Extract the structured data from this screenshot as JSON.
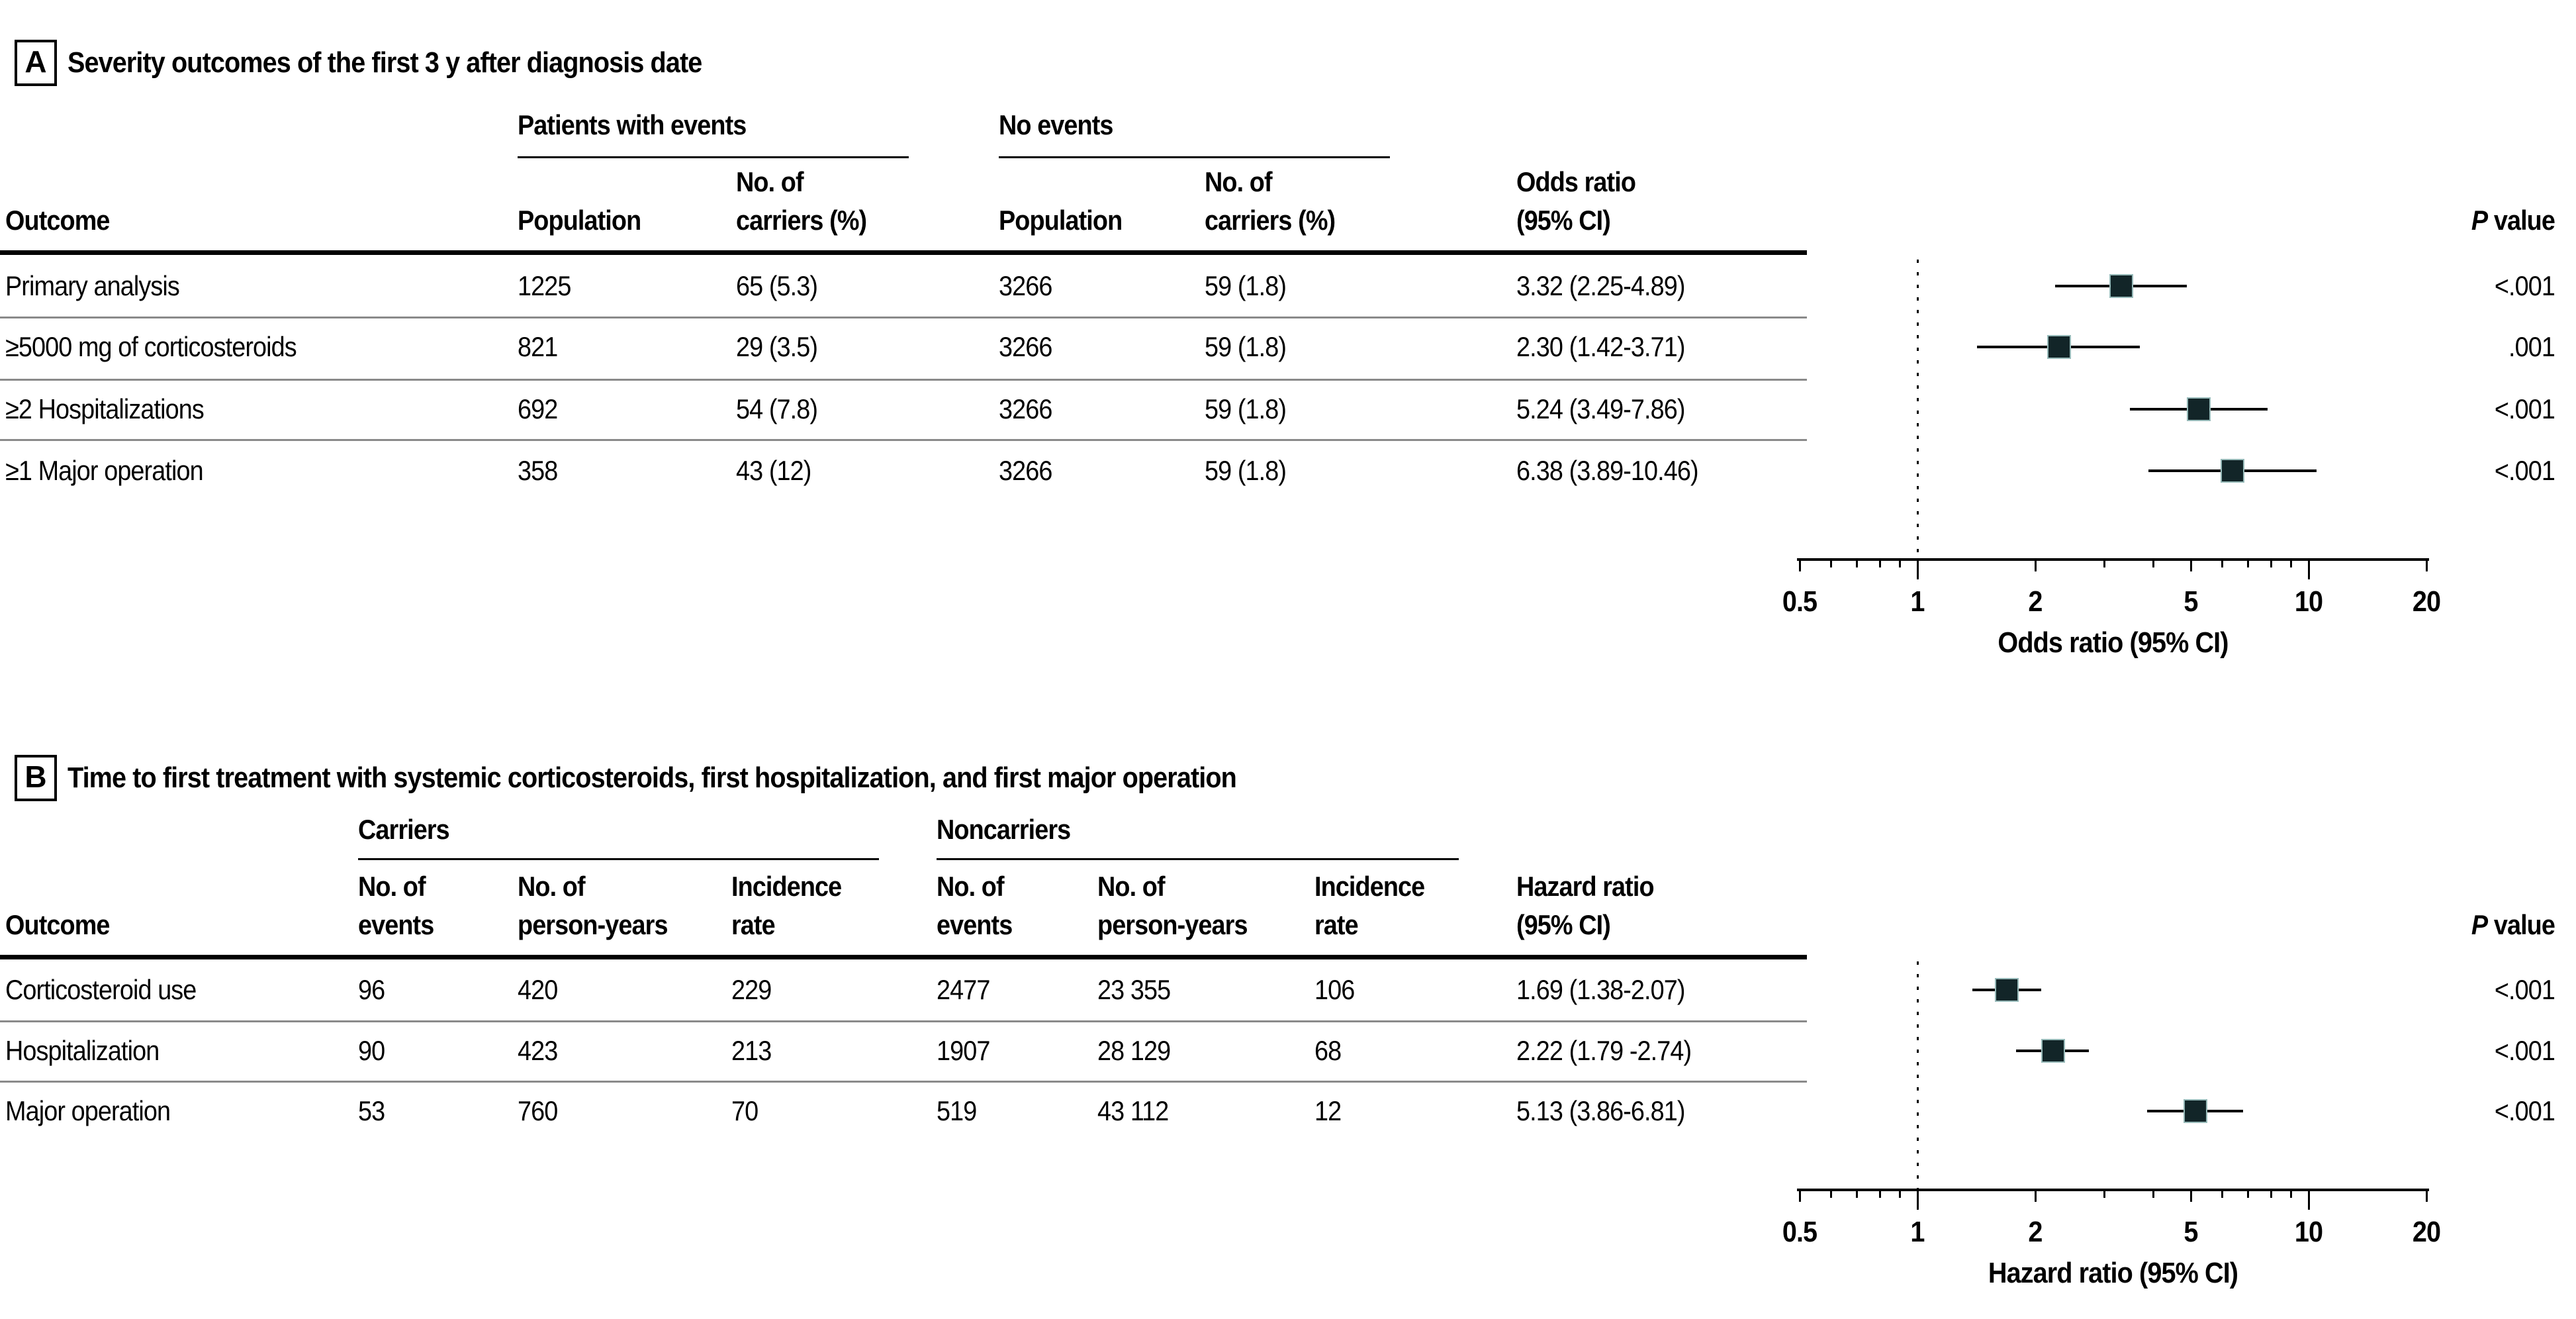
{
  "panelA": {
    "label": "A",
    "title": "Severity outcomes of the first 3 y after diagnosis date",
    "groups": {
      "events": "Patients with events",
      "no_events": "No events"
    },
    "columns": {
      "outcome": "Outcome",
      "population": "Population",
      "carriers": "No. of\ncarriers (%)",
      "population2": "Population",
      "carriers2": "No. of\ncarriers (%)",
      "odds_ratio": "Odds ratio\n(95% CI)",
      "p_italic": "P",
      "p_rest": " value"
    },
    "rows": [
      {
        "outcome": "Primary analysis",
        "pop_ev": "1225",
        "carr_ev": "65 (5.3)",
        "pop_ne": "3266",
        "carr_ne": "59 (1.8)",
        "or_ci": "3.32 (2.25-4.89)",
        "p": "<.001"
      },
      {
        "outcome": "≥5000 mg of corticosteroids",
        "pop_ev": "821",
        "carr_ev": "29 (3.5)",
        "pop_ne": "3266",
        "carr_ne": "59 (1.8)",
        "or_ci": "2.30 (1.42-3.71)",
        "p": ".001"
      },
      {
        "outcome": "≥2 Hospitalizations",
        "pop_ev": "692",
        "carr_ev": "54 (7.8)",
        "pop_ne": "3266",
        "carr_ne": "59 (1.8)",
        "or_ci": "5.24 (3.49-7.86)",
        "p": "<.001"
      },
      {
        "outcome": "≥1 Major operation",
        "pop_ev": "358",
        "carr_ev": "43 (12)",
        "pop_ne": "3266",
        "carr_ne": "59 (1.8)",
        "or_ci": "6.38 (3.89-10.46)",
        "p": "<.001"
      }
    ]
  },
  "panelB": {
    "label": "B",
    "title": "Time to first treatment with systemic corticosteroids, first hospitalization, and first major operation",
    "groups": {
      "carriers": "Carriers",
      "noncarriers": "Noncarriers"
    },
    "columns": {
      "outcome": "Outcome",
      "events": "No. of\nevents",
      "person_years": "No. of\nperson-years",
      "incidence": "Incidence\nrate",
      "events2": "No. of\nevents",
      "person_years2": "No. of\nperson-years",
      "incidence2": "Incidence\nrate",
      "hazard_ratio": "Hazard ratio\n(95% CI)",
      "p_italic": "P",
      "p_rest": " value"
    },
    "rows": [
      {
        "outcome": "Corticosteroid use",
        "ev_c": "96",
        "py_c": "420",
        "ir_c": "229",
        "ev_n": "2477",
        "py_n": "23 355",
        "ir_n": "106",
        "hr_ci": "1.69 (1.38-2.07)",
        "p": "<.001"
      },
      {
        "outcome": "Hospitalization",
        "ev_c": "90",
        "py_c": "423",
        "ir_c": "213",
        "ev_n": "1907",
        "py_n": "28 129",
        "ir_n": "68",
        "hr_ci": "2.22 (1.79 -2.74)",
        "p": "<.001"
      },
      {
        "outcome": "Major operation",
        "ev_c": "53",
        "py_c": "760",
        "ir_c": "70",
        "ev_n": "519",
        "py_n": "43 112",
        "ir_n": "12",
        "hr_ci": "5.13 (3.86-6.81)",
        "p": "<.001"
      }
    ]
  },
  "chart_data": [
    {
      "type": "scatter",
      "subtype": "forest-plot",
      "panel": "A",
      "title": "Severity outcomes of the first 3 y after diagnosis date",
      "xlabel": "Odds ratio (95% CI)",
      "x_scale": "log",
      "xlim": [
        0.5,
        20
      ],
      "x_ticks": [
        0.5,
        1,
        2,
        5,
        10,
        20
      ],
      "x_tick_labels": [
        "0.5",
        "1",
        "2",
        "5",
        "10",
        "20"
      ],
      "minor_ticks": [
        0.6,
        0.7,
        0.8,
        0.9,
        3,
        4,
        6,
        7,
        8,
        9
      ],
      "reference_line": 1,
      "grid": false,
      "points": [
        {
          "label": "Primary analysis",
          "estimate": 3.32,
          "ci_low": 2.25,
          "ci_high": 4.89,
          "p": "<.001"
        },
        {
          "label": "≥5000 mg of corticosteroids",
          "estimate": 2.3,
          "ci_low": 1.42,
          "ci_high": 3.71,
          "p": ".001"
        },
        {
          "label": "≥2 Hospitalizations",
          "estimate": 5.24,
          "ci_low": 3.49,
          "ci_high": 7.86,
          "p": "<.001"
        },
        {
          "label": "≥1 Major operation",
          "estimate": 6.38,
          "ci_low": 3.89,
          "ci_high": 10.46,
          "p": "<.001"
        }
      ]
    },
    {
      "type": "scatter",
      "subtype": "forest-plot",
      "panel": "B",
      "title": "Time to first treatment with systemic corticosteroids, first hospitalization, and first major operation",
      "xlabel": "Hazard ratio (95% CI)",
      "x_scale": "log",
      "xlim": [
        0.5,
        20
      ],
      "x_ticks": [
        0.5,
        1,
        2,
        5,
        10,
        20
      ],
      "x_tick_labels": [
        "0.5",
        "1",
        "2",
        "5",
        "10",
        "20"
      ],
      "minor_ticks": [
        0.6,
        0.7,
        0.8,
        0.9,
        3,
        4,
        6,
        7,
        8,
        9
      ],
      "reference_line": 1,
      "grid": false,
      "points": [
        {
          "label": "Corticosteroid use",
          "estimate": 1.69,
          "ci_low": 1.38,
          "ci_high": 2.07,
          "p": "<.001"
        },
        {
          "label": "Hospitalization",
          "estimate": 2.22,
          "ci_low": 1.79,
          "ci_high": 2.74,
          "p": "<.001"
        },
        {
          "label": "Major operation",
          "estimate": 5.13,
          "ci_low": 3.86,
          "ci_high": 6.81,
          "p": "<.001"
        }
      ]
    }
  ],
  "colors": {
    "marker": "#122528",
    "marker_edge": "#96b9b8",
    "row_line": "#8a8a8a",
    "text": "#000000"
  }
}
